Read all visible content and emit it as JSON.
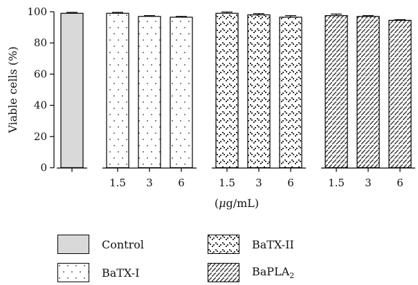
{
  "chart_data": {
    "type": "bar",
    "ylabel": "Viable cells (%)",
    "xlabel_unit": "(μg/mL)",
    "ylim": [
      0,
      100
    ],
    "yticks": [
      "0",
      "20",
      "40",
      "60",
      "80",
      "100"
    ],
    "grid": false,
    "groups": [
      {
        "name": "Control",
        "pattern": "solid",
        "color": "#d9d9d9",
        "bars": [
          {
            "label": "",
            "value": 99.0,
            "error": 0.6
          }
        ]
      },
      {
        "name": "BaTX-I",
        "pattern": "dots",
        "bars": [
          {
            "label": "1.5",
            "value": 99.0,
            "error": 0.6
          },
          {
            "label": "3",
            "value": 97.0,
            "error": 0.5
          },
          {
            "label": "6",
            "value": 96.5,
            "error": 0.5
          }
        ]
      },
      {
        "name": "BaTX-II",
        "pattern": "checks",
        "bars": [
          {
            "label": "1.5",
            "value": 99.0,
            "error": 0.8
          },
          {
            "label": "3",
            "value": 98.0,
            "error": 0.8
          },
          {
            "label": "6",
            "value": 96.5,
            "error": 1.0
          }
        ]
      },
      {
        "name": "BaPLA2",
        "pattern": "hatch",
        "bars": [
          {
            "label": "1.5",
            "value": 97.5,
            "error": 1.0
          },
          {
            "label": "3",
            "value": 97.0,
            "error": 0.5
          },
          {
            "label": "6",
            "value": 94.5,
            "error": 0.4
          }
        ]
      }
    ]
  },
  "legend": {
    "control": "Control",
    "batx1": "BaTX-I",
    "batx2": "BaTX-II",
    "bapla2_base": "BaPLA",
    "bapla2_sub": "2"
  }
}
